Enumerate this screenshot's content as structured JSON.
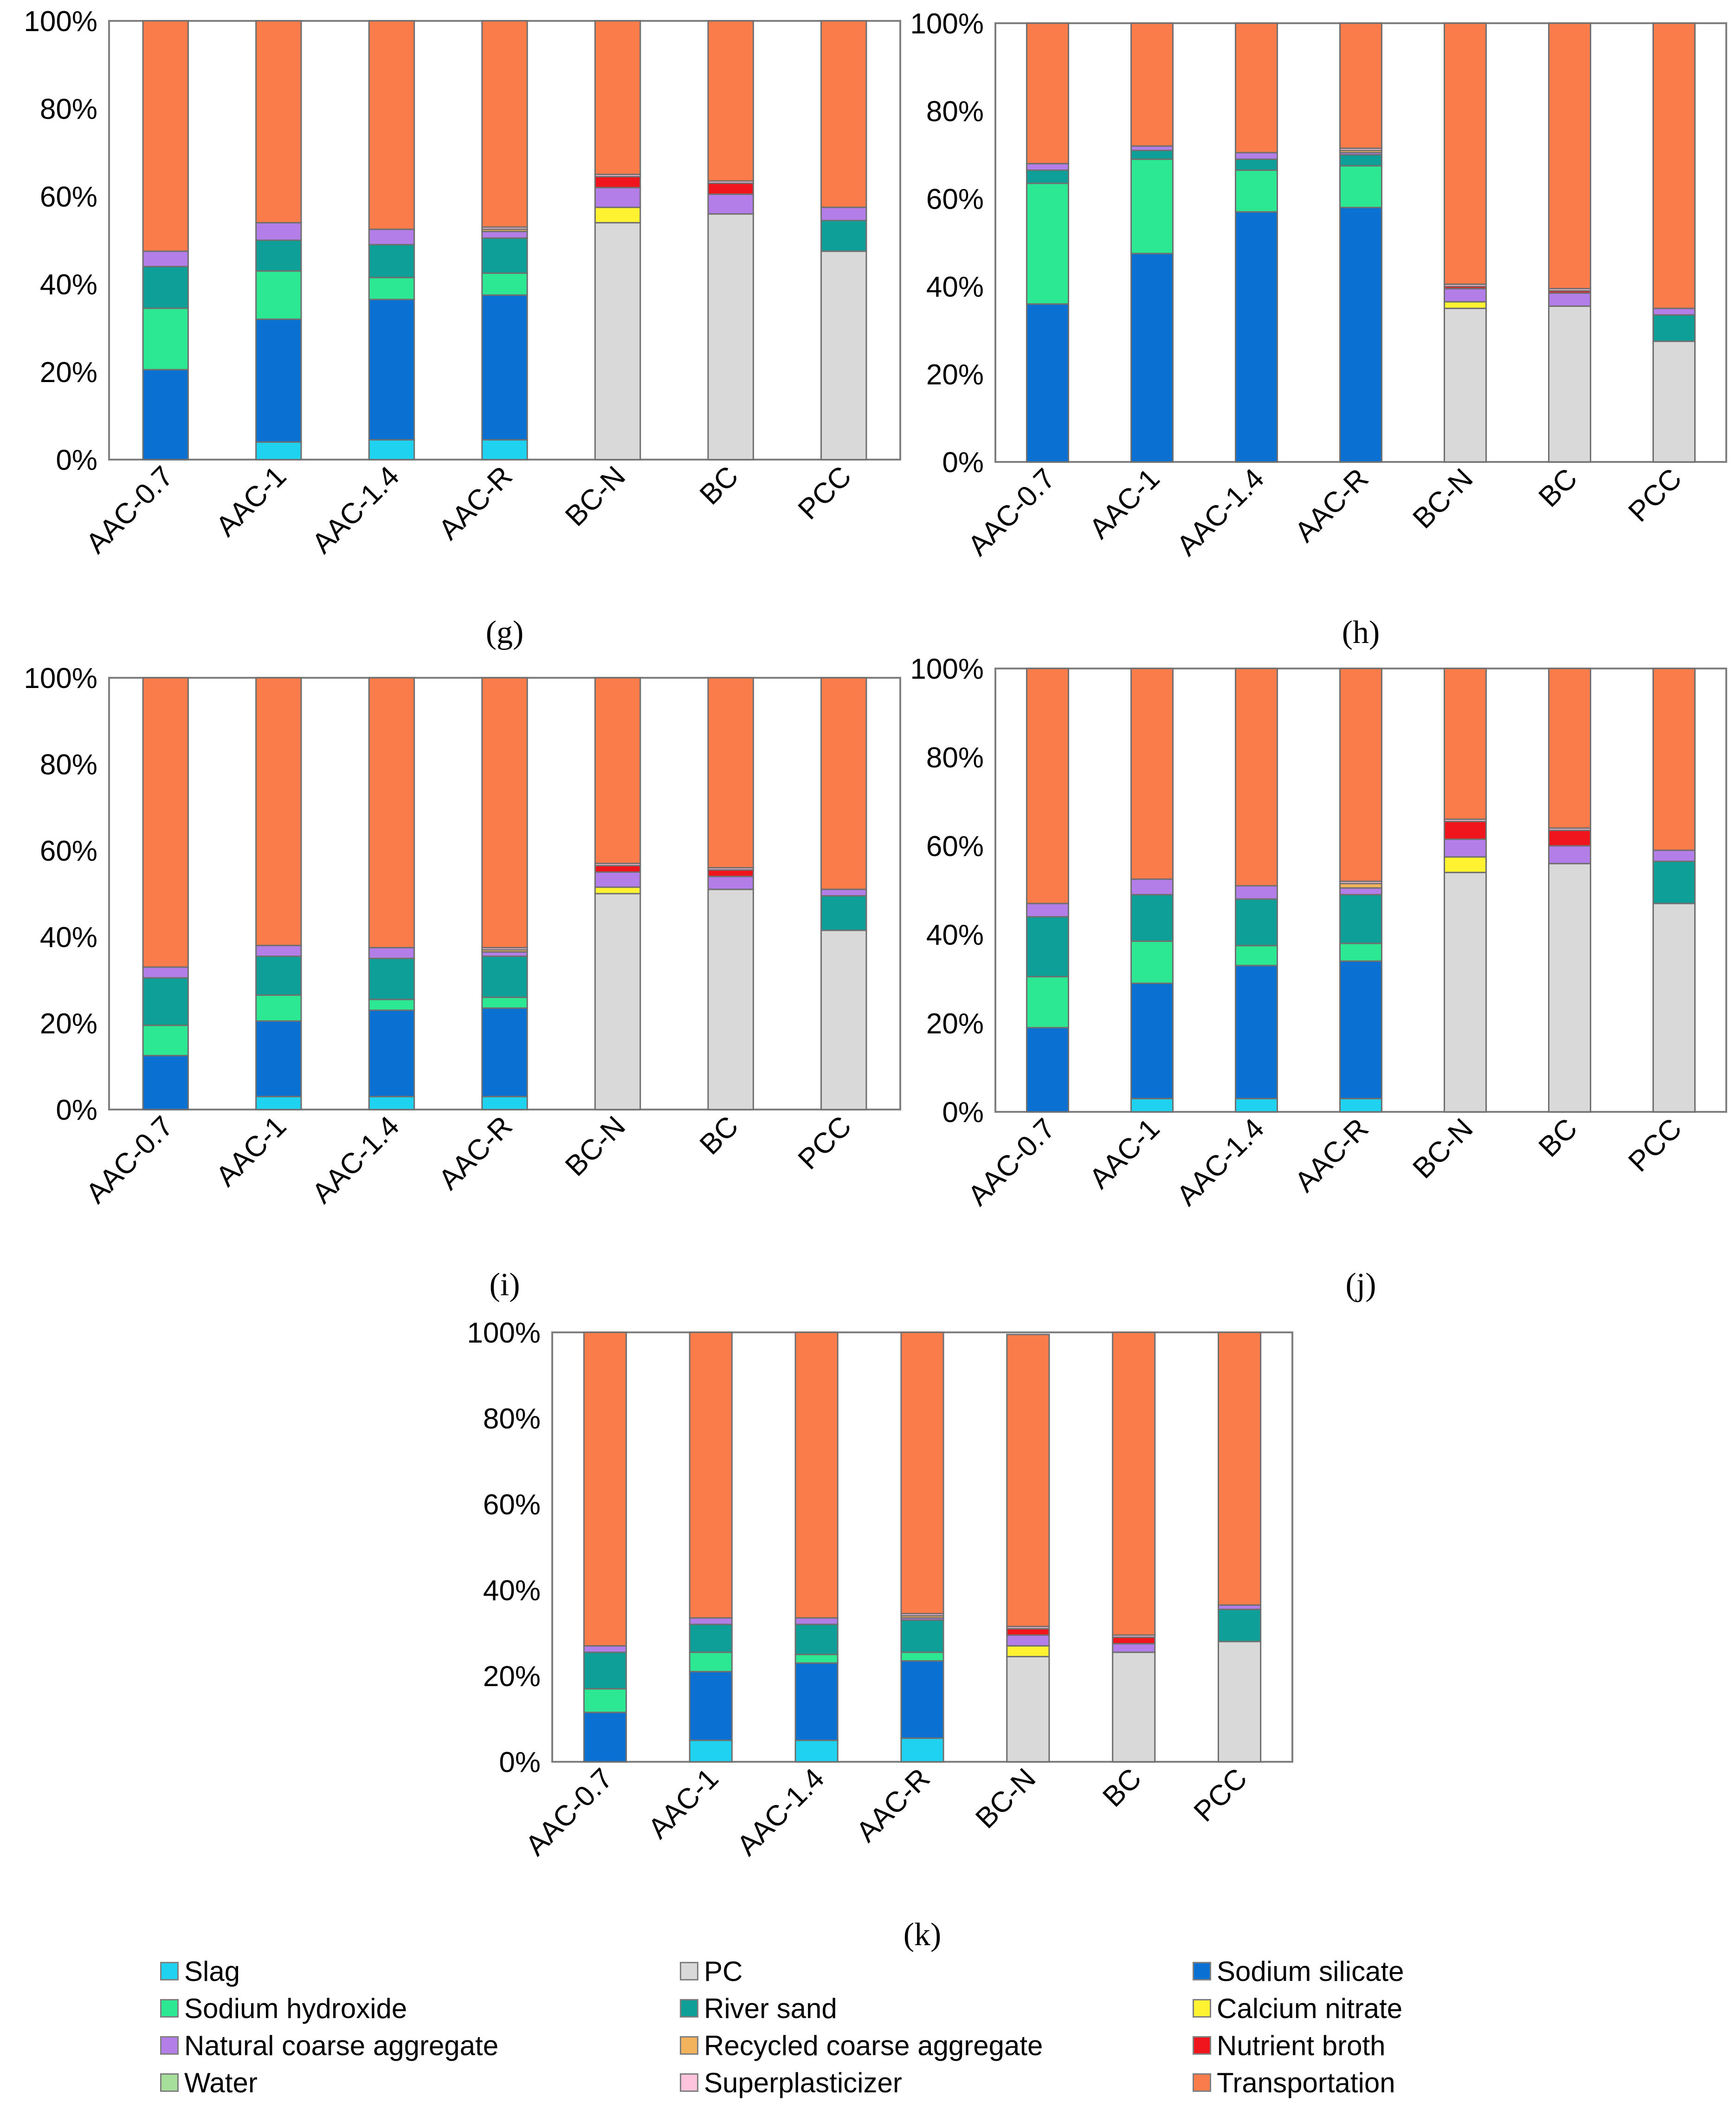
{
  "colors": {
    "Slag": "#1fd3f0",
    "PC": "#d9d9d9",
    "Sodium silicate": "#0a70d2",
    "Sodium hydroxide": "#2de893",
    "River sand": "#0e9f98",
    "Calcium nitrate": "#fff231",
    "Natural coarse aggregate": "#b47ee8",
    "Recycled coarse aggregate": "#f3b25c",
    "Nutrient broth": "#f0141c",
    "Water": "#a6df9a",
    "Superplasticizer": "#ffc4dc",
    "Transportation": "#fa7c4a"
  },
  "legend": {
    "items": [
      "Slag",
      "PC",
      "Sodium silicate",
      "Sodium hydroxide",
      "River sand",
      "Calcium nitrate",
      "Natural coarse aggregate",
      "Recycled coarse aggregate",
      "Nutrient broth",
      "Water",
      "Superplasticizer",
      "Transportation"
    ]
  },
  "chart_data": [
    {
      "type": "bar",
      "stacked": true,
      "panel_label": "(g)",
      "categories": [
        "AAC-0.7",
        "AAC-1",
        "AAC-1.4",
        "AAC-R",
        "BC-N",
        "BC",
        "PCC"
      ],
      "ylim": [
        0,
        100
      ],
      "yticks": [
        "0%",
        "20%",
        "40%",
        "60%",
        "80%",
        "100%"
      ],
      "series": [
        {
          "name": "Slag",
          "values": [
            0,
            4,
            4.5,
            4.5,
            0,
            0,
            0
          ]
        },
        {
          "name": "PC",
          "values": [
            0,
            0,
            0,
            0,
            54,
            56,
            47.5
          ]
        },
        {
          "name": "Sodium silicate",
          "values": [
            20.5,
            28,
            32,
            33,
            0,
            0,
            0
          ]
        },
        {
          "name": "Sodium hydroxide",
          "values": [
            14,
            11,
            5,
            5,
            0,
            0,
            0
          ]
        },
        {
          "name": "River sand",
          "values": [
            9.5,
            7,
            7.5,
            8,
            0,
            0,
            7
          ]
        },
        {
          "name": "Calcium nitrate",
          "values": [
            0,
            0,
            0,
            0,
            3.5,
            0,
            0
          ]
        },
        {
          "name": "Natural coarse aggregate",
          "values": [
            3.5,
            4,
            3.5,
            1.5,
            4.5,
            4.5,
            3
          ]
        },
        {
          "name": "Recycled coarse aggregate",
          "values": [
            0,
            0,
            0,
            0.5,
            0,
            0,
            0
          ]
        },
        {
          "name": "Nutrient broth",
          "values": [
            0,
            0,
            0,
            0,
            2.5,
            2.5,
            0
          ]
        },
        {
          "name": "Water",
          "values": [
            0,
            0,
            0,
            0,
            0,
            0,
            0
          ]
        },
        {
          "name": "Superplasticizer",
          "values": [
            0,
            0,
            0,
            0.5,
            0.5,
            0.5,
            0
          ]
        },
        {
          "name": "Transportation",
          "values": [
            52.5,
            46,
            47.5,
            47,
            35,
            36.5,
            42.5
          ]
        }
      ]
    },
    {
      "type": "bar",
      "stacked": true,
      "panel_label": "(h)",
      "categories": [
        "AAC-0.7",
        "AAC-1",
        "AAC-1.4",
        "AAC-R",
        "BC-N",
        "BC",
        "PCC"
      ],
      "ylim": [
        0,
        100
      ],
      "yticks": [
        "0%",
        "20%",
        "40%",
        "60%",
        "80%",
        "100%"
      ],
      "series": [
        {
          "name": "Slag",
          "values": [
            0,
            0,
            0,
            0,
            0,
            0,
            0
          ]
        },
        {
          "name": "PC",
          "values": [
            0,
            0,
            0,
            0,
            35,
            35.5,
            27.5
          ]
        },
        {
          "name": "Sodium silicate",
          "values": [
            36,
            47.5,
            57,
            58,
            0,
            0,
            0
          ]
        },
        {
          "name": "Sodium hydroxide",
          "values": [
            27.5,
            21.5,
            9.5,
            9.5,
            0,
            0,
            0
          ]
        },
        {
          "name": "River sand",
          "values": [
            3,
            2,
            2.5,
            2.5,
            0,
            0,
            6
          ]
        },
        {
          "name": "Calcium nitrate",
          "values": [
            0,
            0,
            0,
            0,
            1.5,
            0,
            0
          ]
        },
        {
          "name": "Natural coarse aggregate",
          "values": [
            1.5,
            1,
            1.5,
            0.5,
            3,
            3,
            1.5
          ]
        },
        {
          "name": "Recycled coarse aggregate",
          "values": [
            0,
            0,
            0,
            0.5,
            0,
            0,
            0
          ]
        },
        {
          "name": "Nutrient broth",
          "values": [
            0,
            0,
            0,
            0,
            0.5,
            0.5,
            0
          ]
        },
        {
          "name": "Water",
          "values": [
            0,
            0,
            0,
            0,
            0,
            0,
            0
          ]
        },
        {
          "name": "Superplasticizer",
          "values": [
            0,
            0,
            0,
            0.5,
            0.5,
            0.5,
            0
          ]
        },
        {
          "name": "Transportation",
          "values": [
            32,
            28,
            29.5,
            28.5,
            59.5,
            60.5,
            65
          ]
        }
      ]
    },
    {
      "type": "bar",
      "stacked": true,
      "panel_label": "(i)",
      "categories": [
        "AAC-0.7",
        "AAC-1",
        "AAC-1.4",
        "AAC-R",
        "BC-N",
        "BC",
        "PCC"
      ],
      "ylim": [
        0,
        100
      ],
      "yticks": [
        "0%",
        "20%",
        "40%",
        "60%",
        "80%",
        "100%"
      ],
      "series": [
        {
          "name": "Slag",
          "values": [
            0,
            3,
            3,
            3,
            0,
            0,
            0
          ]
        },
        {
          "name": "PC",
          "values": [
            0,
            0,
            0,
            0,
            50,
            51,
            41.5
          ]
        },
        {
          "name": "Sodium silicate",
          "values": [
            12.5,
            17.5,
            20,
            20.5,
            0,
            0,
            0
          ]
        },
        {
          "name": "Sodium hydroxide",
          "values": [
            7,
            6,
            2.5,
            2.5,
            0,
            0,
            0
          ]
        },
        {
          "name": "River sand",
          "values": [
            11,
            9,
            9.5,
            9.5,
            0,
            0,
            8
          ]
        },
        {
          "name": "Calcium nitrate",
          "values": [
            0,
            0,
            0,
            0,
            1.5,
            0,
            0
          ]
        },
        {
          "name": "Natural coarse aggregate",
          "values": [
            2.5,
            2.5,
            2.5,
            1,
            3.5,
            3,
            1.5
          ]
        },
        {
          "name": "Recycled coarse aggregate",
          "values": [
            0,
            0,
            0,
            0.5,
            0,
            0,
            0
          ]
        },
        {
          "name": "Nutrient broth",
          "values": [
            0,
            0,
            0,
            0,
            1.5,
            1.5,
            0
          ]
        },
        {
          "name": "Water",
          "values": [
            0,
            0,
            0,
            0,
            0,
            0,
            0
          ]
        },
        {
          "name": "Superplasticizer",
          "values": [
            0,
            0,
            0,
            0.5,
            0.5,
            0.5,
            0
          ]
        },
        {
          "name": "Transportation",
          "values": [
            67,
            62,
            62.5,
            62.5,
            43,
            44,
            49
          ]
        }
      ]
    },
    {
      "type": "bar",
      "stacked": true,
      "panel_label": "(j)",
      "categories": [
        "AAC-0.7",
        "AAC-1",
        "AAC-1.4",
        "AAC-R",
        "BC-N",
        "BC",
        "PCC"
      ],
      "ylim": [
        0,
        100
      ],
      "yticks": [
        "0%",
        "20%",
        "40%",
        "60%",
        "80%",
        "100%"
      ],
      "series": [
        {
          "name": "Slag",
          "values": [
            0,
            3,
            3,
            3,
            0,
            0,
            0
          ]
        },
        {
          "name": "PC",
          "values": [
            0,
            0,
            0,
            0,
            54,
            56,
            47
          ]
        },
        {
          "name": "Sodium silicate",
          "values": [
            19,
            26,
            30,
            31,
            0,
            0,
            0
          ]
        },
        {
          "name": "Sodium hydroxide",
          "values": [
            11.5,
            9.5,
            4.5,
            4,
            0,
            0,
            0
          ]
        },
        {
          "name": "River sand",
          "values": [
            13.5,
            10.5,
            10.5,
            11,
            0,
            0,
            9.5
          ]
        },
        {
          "name": "Calcium nitrate",
          "values": [
            0,
            0,
            0,
            0,
            3.5,
            0,
            0
          ]
        },
        {
          "name": "Natural coarse aggregate",
          "values": [
            3,
            3.5,
            3,
            1.5,
            4,
            4,
            2.5
          ]
        },
        {
          "name": "Recycled coarse aggregate",
          "values": [
            0,
            0,
            0,
            1,
            0,
            0,
            0
          ]
        },
        {
          "name": "Nutrient broth",
          "values": [
            0,
            0,
            0,
            0,
            4,
            3.5,
            0
          ]
        },
        {
          "name": "Water",
          "values": [
            0,
            0,
            0,
            0,
            0,
            0,
            0
          ]
        },
        {
          "name": "Superplasticizer",
          "values": [
            0,
            0,
            0,
            0.5,
            0.5,
            0.5,
            0
          ]
        },
        {
          "name": "Transportation",
          "values": [
            53,
            47.5,
            49,
            48,
            34,
            36,
            41
          ]
        }
      ]
    },
    {
      "type": "bar",
      "stacked": true,
      "panel_label": "(k)",
      "categories": [
        "AAC-0.7",
        "AAC-1",
        "AAC-1.4",
        "AAC-R",
        "BC-N",
        "BC",
        "PCC"
      ],
      "ylim": [
        0,
        100
      ],
      "yticks": [
        "0%",
        "20%",
        "40%",
        "60%",
        "80%",
        "100%"
      ],
      "series": [
        {
          "name": "Slag",
          "values": [
            0,
            5,
            5,
            5.5,
            0,
            0,
            0
          ]
        },
        {
          "name": "PC",
          "values": [
            0,
            0,
            0,
            0,
            24.5,
            25.5,
            28
          ]
        },
        {
          "name": "Sodium silicate",
          "values": [
            11.5,
            16,
            18,
            18,
            0,
            0,
            0
          ]
        },
        {
          "name": "Sodium hydroxide",
          "values": [
            5.5,
            4.5,
            2,
            2,
            0,
            0,
            0
          ]
        },
        {
          "name": "River sand",
          "values": [
            8.5,
            6.5,
            7,
            7.5,
            0,
            0,
            7.5
          ]
        },
        {
          "name": "Calcium nitrate",
          "values": [
            0,
            0,
            0,
            0,
            2.5,
            0,
            0
          ]
        },
        {
          "name": "Natural coarse aggregate",
          "values": [
            1.5,
            1.5,
            1.5,
            0.5,
            2.5,
            2,
            1
          ]
        },
        {
          "name": "Recycled coarse aggregate",
          "values": [
            0,
            0,
            0,
            0.5,
            0,
            0,
            0
          ]
        },
        {
          "name": "Nutrient broth",
          "values": [
            0,
            0,
            0,
            0,
            1.5,
            1.5,
            0
          ]
        },
        {
          "name": "Water",
          "values": [
            0,
            0,
            0,
            0,
            0,
            0,
            0
          ]
        },
        {
          "name": "Superplasticizer",
          "values": [
            0,
            0,
            0,
            0.5,
            0.5,
            0.5,
            0
          ]
        },
        {
          "name": "Transportation",
          "values": [
            73,
            66.5,
            66.5,
            65.5,
            68,
            70.5,
            63.5
          ]
        }
      ]
    }
  ]
}
